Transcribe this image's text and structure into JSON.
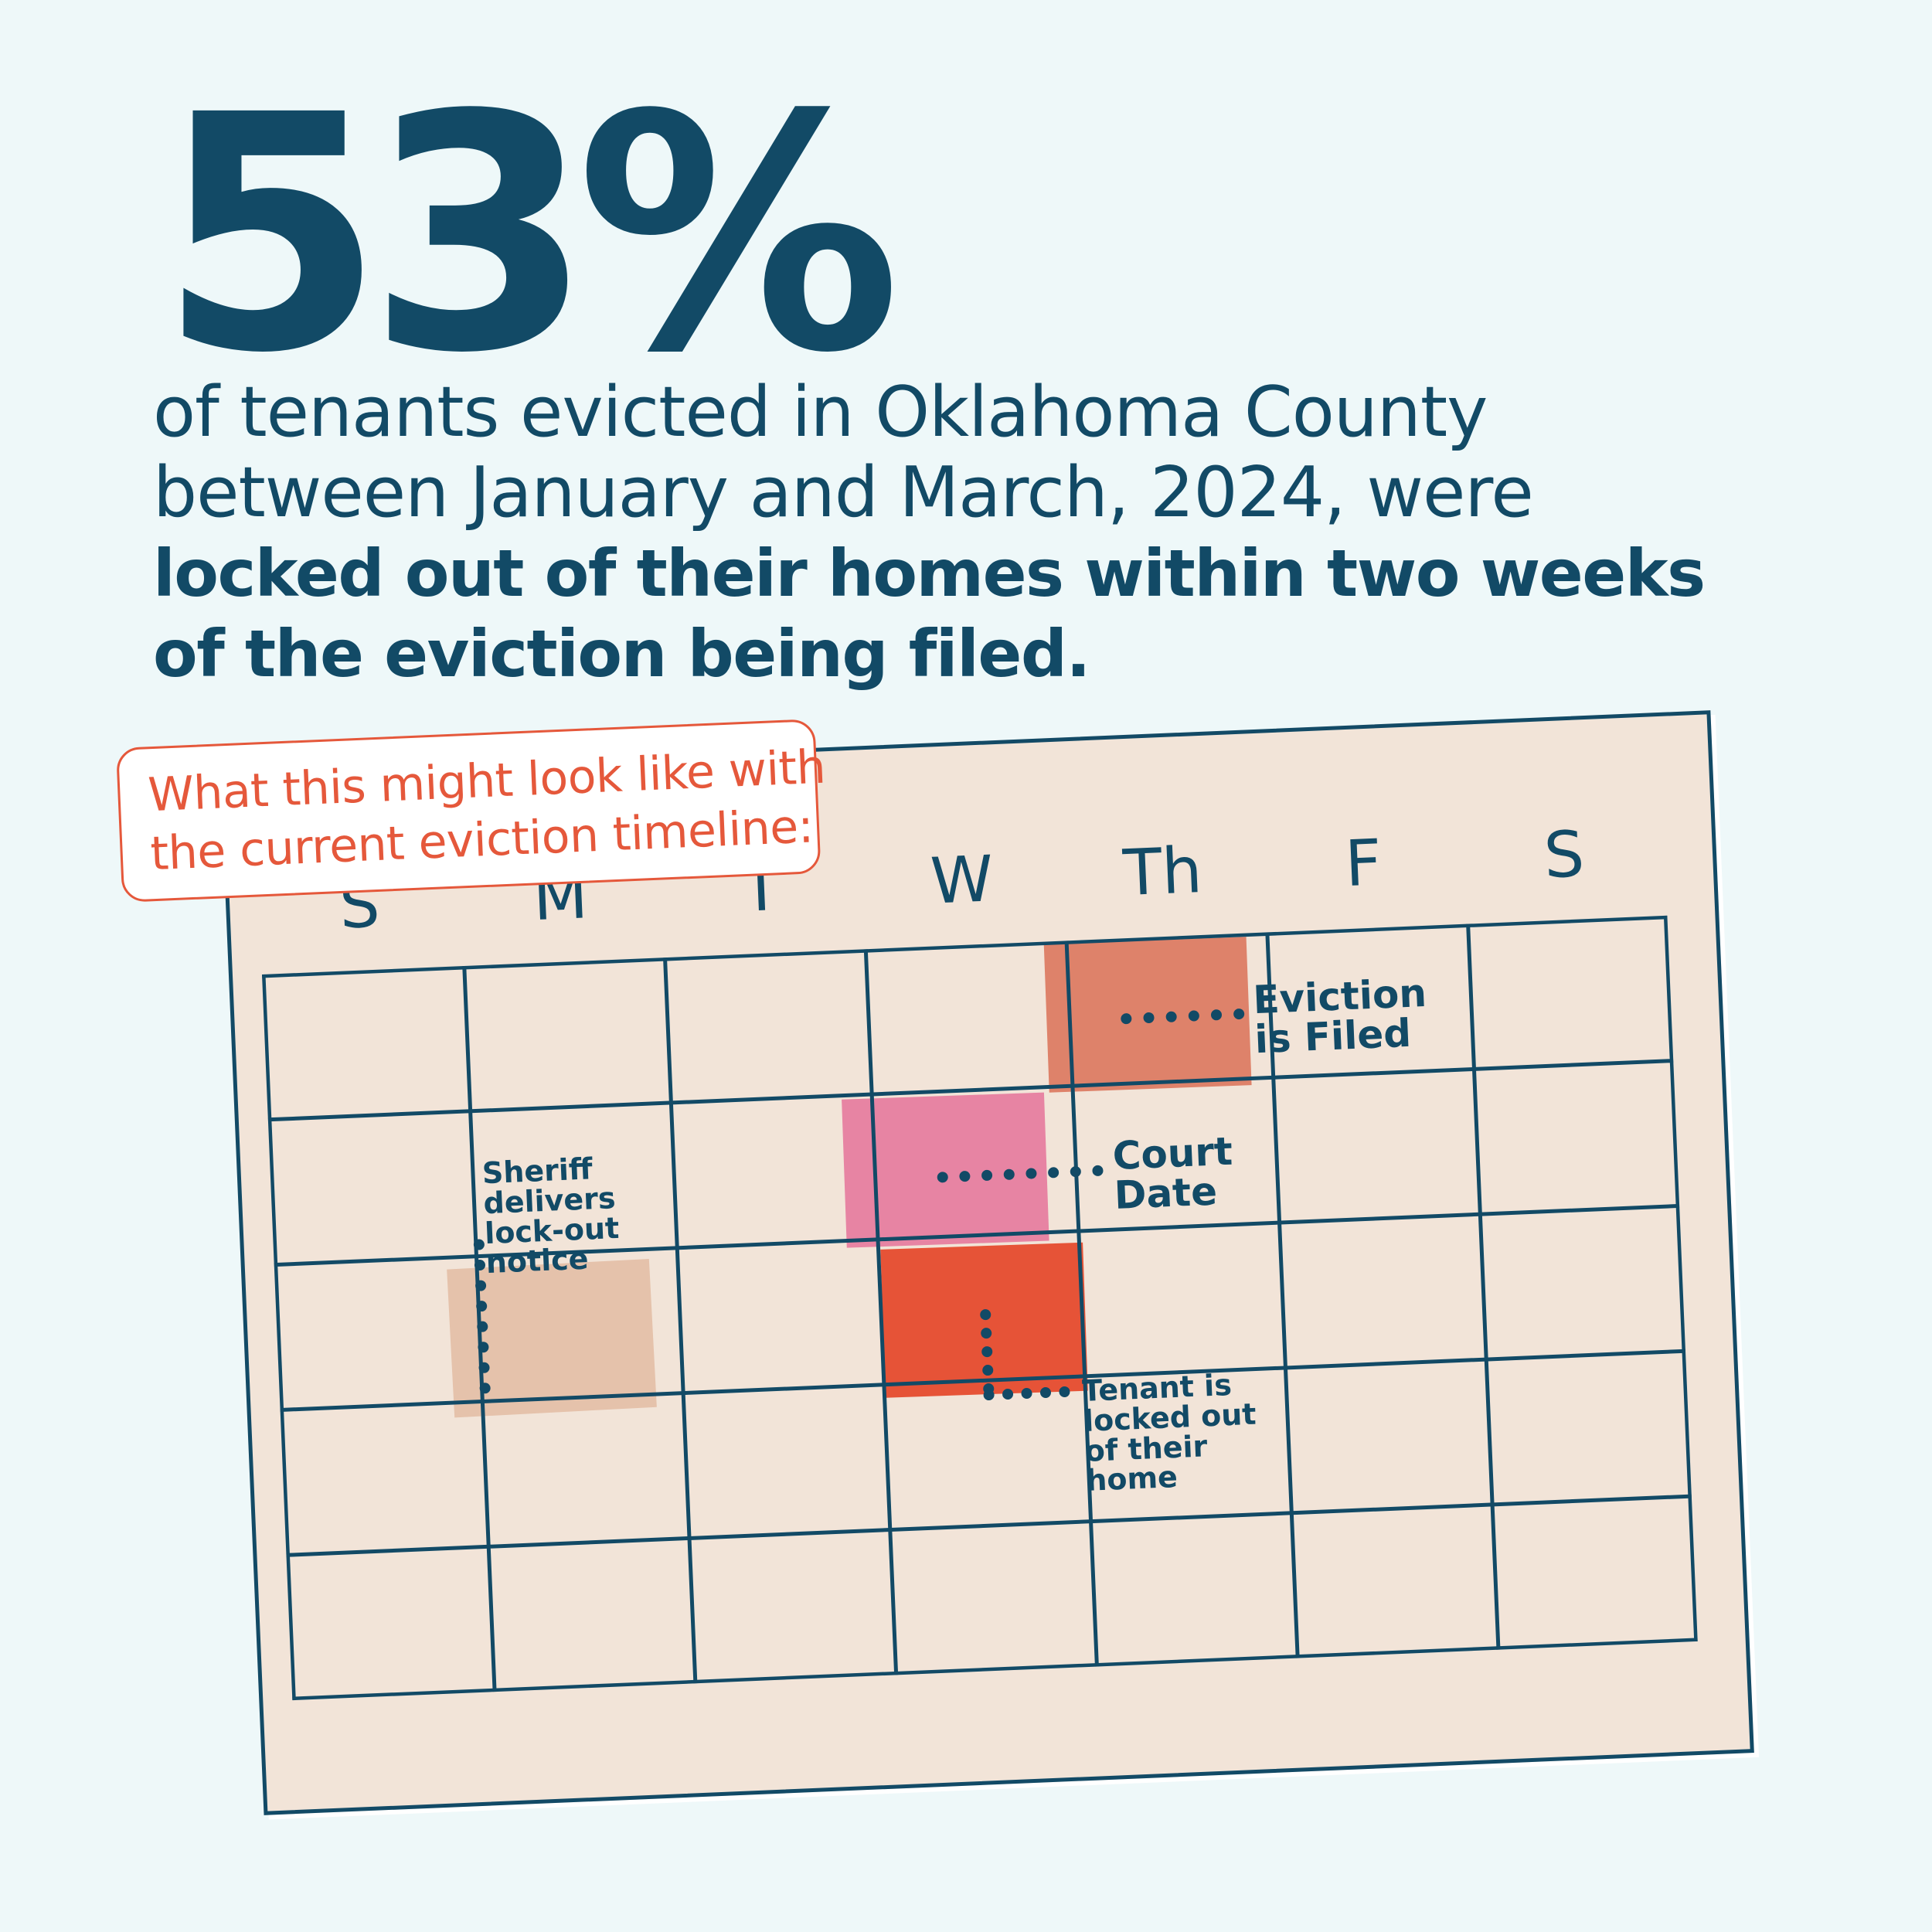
{
  "headline": {
    "stat": "53%"
  },
  "summary": {
    "line1": "of tenants evicted in Oklahoma County",
    "line2": "between January and March, 2024, were",
    "line3_bold": "locked out of their homes within two weeks",
    "line4_bold": "of the eviction being filed."
  },
  "callout": {
    "line1": "What this might look like with",
    "line2": "the current eviction timeline:"
  },
  "calendar": {
    "weekdays": [
      "S",
      "M",
      "T",
      "W",
      "Th",
      "F",
      "S"
    ],
    "events": [
      {
        "label": "Eviction\nis Filed",
        "color": "#de826a",
        "day": "Th",
        "week": 1
      },
      {
        "label": "Court\nDate",
        "color": "#e784a3",
        "day": "W",
        "week": 2
      },
      {
        "label": "Sheriff\ndelivers\nlock-out\nnotice",
        "color": "#e5c2ab",
        "day": "M",
        "week": 3
      },
      {
        "label": "Tenant is\nlocked out\nof their\nhome",
        "color": "#e65337",
        "day": "W",
        "week": 3
      }
    ]
  },
  "colors": {
    "navy": "#124a66",
    "accent": "#e5583b",
    "background": "#eef8f9",
    "paper": "#f2e4d8"
  }
}
